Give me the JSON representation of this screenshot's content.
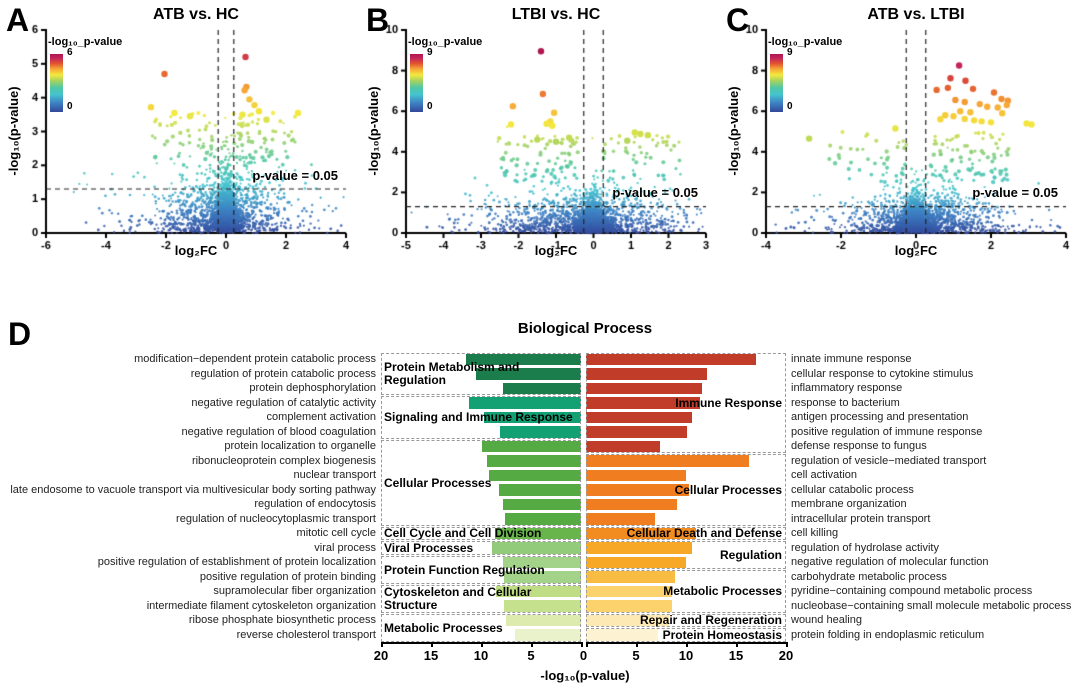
{
  "figure": {
    "panels": [
      {
        "letter": "A"
      },
      {
        "letter": "B"
      },
      {
        "letter": "C"
      },
      {
        "letter": "D"
      }
    ]
  },
  "chart_data": [
    {
      "type": "scatter",
      "subtype": "volcano",
      "title": "ATB vs. HC",
      "xlabel": "log₂FC",
      "ylabel": "-log₁₀(p-value)",
      "xlim": [
        -6,
        4
      ],
      "ylim": [
        0,
        6
      ],
      "xticks": [
        -6,
        -4,
        -2,
        0,
        2,
        4
      ],
      "yticks": [
        0,
        1,
        2,
        3,
        4,
        5,
        6
      ],
      "colorbar": {
        "label": "-log₁₀_p-value",
        "max_label": "6",
        "min_label": "0",
        "max": 6,
        "min": 0
      },
      "pvalue_label": "p-value = 0.05",
      "thresholds": {
        "pvalue_line": 1.3,
        "fc_lines": [
          -0.26,
          0.26
        ]
      },
      "grid": false,
      "scatter_sim": {
        "seed": 7,
        "n": 2400,
        "skew": -0.3,
        "mid": 1.0,
        "wide": 1.9,
        "upper_n": 110,
        "upper_y": [
          2.0,
          3.55
        ],
        "pos_frac": 0.62
      },
      "notable_points": [
        [
          0.65,
          5.2
        ],
        [
          -2.05,
          4.7
        ],
        [
          0.68,
          4.32
        ],
        [
          0.62,
          4.22
        ],
        [
          0.78,
          3.95
        ],
        [
          0.95,
          3.78
        ],
        [
          -2.5,
          3.72
        ],
        [
          -1.72,
          3.55
        ],
        [
          1.1,
          3.6
        ],
        [
          0.55,
          3.5
        ],
        [
          2.4,
          3.55
        ],
        [
          1.35,
          3.35
        ],
        [
          -1.2,
          3.45
        ]
      ]
    },
    {
      "type": "scatter",
      "subtype": "volcano",
      "title": "LTBI vs. HC",
      "xlabel": "log₂FC",
      "ylabel": "-log₁₀(p-value)",
      "xlim": [
        -5,
        3
      ],
      "ylim": [
        0,
        10
      ],
      "xticks": [
        -5,
        -4,
        -3,
        -2,
        -1,
        0,
        1,
        2,
        3
      ],
      "yticks": [
        0,
        2,
        4,
        6,
        8,
        10
      ],
      "colorbar": {
        "label": "-log₁₀_p-value",
        "max_label": "9",
        "min_label": "0",
        "max": 9,
        "min": 0
      },
      "pvalue_label": "p-value = 0.05",
      "thresholds": {
        "pvalue_line": 1.3,
        "fc_lines": [
          -0.26,
          0.26
        ]
      },
      "grid": false,
      "scatter_sim": {
        "seed": 13,
        "n": 2400,
        "skew": -0.5,
        "mid": 1.1,
        "wide": 1.7,
        "upper_n": 130,
        "upper_y": [
          2.5,
          4.85
        ],
        "pos_frac": 0.45
      },
      "notable_points": [
        [
          -1.4,
          8.95
        ],
        [
          -1.35,
          6.85
        ],
        [
          -2.15,
          6.25
        ],
        [
          -1.05,
          5.92
        ],
        [
          -1.15,
          5.5
        ],
        [
          -1.25,
          5.38
        ],
        [
          -2.2,
          5.35
        ],
        [
          -1.1,
          5.28
        ],
        [
          1.1,
          4.95
        ],
        [
          1.25,
          4.88
        ],
        [
          1.45,
          4.82
        ],
        [
          0.9,
          4.55
        ],
        [
          -0.65,
          4.7
        ],
        [
          -1.5,
          4.6
        ],
        [
          -1.0,
          4.5
        ]
      ]
    },
    {
      "type": "scatter",
      "subtype": "volcano",
      "title": "ATB vs. LTBI",
      "xlabel": "log₂FC",
      "ylabel": "-log₁₀(p-value)",
      "xlim": [
        -4,
        4
      ],
      "ylim": [
        0,
        10
      ],
      "xticks": [
        -4,
        -2,
        0,
        2,
        4
      ],
      "yticks": [
        0,
        2,
        4,
        6,
        8,
        10
      ],
      "colorbar": {
        "label": "-log₁₀_p-value",
        "max_label": "9",
        "min_label": "0",
        "max": 9,
        "min": 0
      },
      "pvalue_label": "p-value = 0.05",
      "thresholds": {
        "pvalue_line": 1.3,
        "fc_lines": [
          -0.26,
          0.26
        ]
      },
      "grid": false,
      "scatter_sim": {
        "seed": 21,
        "n": 2400,
        "skew": 0.35,
        "mid": 0.95,
        "wide": 1.55,
        "upper_n": 120,
        "upper_y": [
          2.5,
          5.0
        ],
        "pos_frac": 0.7
      },
      "notable_points": [
        [
          1.15,
          8.25
        ],
        [
          0.92,
          7.62
        ],
        [
          1.32,
          7.5
        ],
        [
          0.85,
          7.15
        ],
        [
          1.52,
          7.1
        ],
        [
          0.55,
          7.05
        ],
        [
          2.08,
          6.92
        ],
        [
          1.05,
          6.55
        ],
        [
          2.28,
          6.6
        ],
        [
          2.45,
          6.52
        ],
        [
          1.3,
          6.45
        ],
        [
          1.7,
          6.35
        ],
        [
          2.42,
          6.3
        ],
        [
          1.9,
          6.22
        ],
        [
          2.18,
          6.18
        ],
        [
          1.18,
          6.0
        ],
        [
          1.45,
          5.95
        ],
        [
          2.3,
          5.9
        ],
        [
          0.78,
          5.8
        ],
        [
          1.0,
          5.75
        ],
        [
          0.65,
          5.6
        ],
        [
          1.3,
          5.62
        ],
        [
          1.55,
          5.55
        ],
        [
          1.75,
          5.5
        ],
        [
          2.0,
          5.45
        ],
        [
          2.95,
          5.4
        ],
        [
          3.08,
          5.35
        ],
        [
          -0.55,
          5.15
        ],
        [
          -2.85,
          4.65
        ]
      ]
    },
    {
      "type": "bar",
      "orientation": "diverging-horizontal",
      "title": "Biological Process",
      "xlabel": "-log₁₀(p-value)",
      "xmax": 20,
      "axis": {
        "left_ticks": [
          "20",
          "15",
          "10",
          "5"
        ],
        "zero": "0",
        "right_ticks": [
          "5",
          "10",
          "15",
          "20"
        ]
      },
      "left": {
        "rows": [
          {
            "label": "modification−dependent protein catabolic process",
            "value": 11.5,
            "color": "#1a7d4b"
          },
          {
            "label": "regulation of protein catabolic process",
            "value": 10.5,
            "color": "#1a7d4b"
          },
          {
            "label": "protein dephosphorylation",
            "value": 7.8,
            "color": "#1a7d4b"
          },
          {
            "label": "negative regulation of catalytic activity",
            "value": 11.2,
            "color": "#13a173"
          },
          {
            "label": "complement activation",
            "value": 9.7,
            "color": "#13a173"
          },
          {
            "label": "negative regulation of blood coagulation",
            "value": 8.1,
            "color": "#13a173"
          },
          {
            "label": "protein localization to organelle",
            "value": 9.9,
            "color": "#55aa43"
          },
          {
            "label": "ribonucleoprotein complex biogenesis",
            "value": 9.4,
            "color": "#55aa43"
          },
          {
            "label": "nuclear transport",
            "value": 9.2,
            "color": "#55aa43"
          },
          {
            "label": "late endosome to vacuole transport via multivesicular body sorting pathway",
            "value": 8.2,
            "color": "#55aa43"
          },
          {
            "label": "regulation of endocytosis",
            "value": 7.8,
            "color": "#55aa43"
          },
          {
            "label": "regulation of nucleocytoplasmic transport",
            "value": 7.6,
            "color": "#55aa43"
          },
          {
            "label": "mitotic cell cycle",
            "value": 8.6,
            "color": "#68b54b"
          },
          {
            "label": "viral process",
            "value": 8.9,
            "color": "#92cc7a"
          },
          {
            "label": "positive regulation of establishment of protein localization",
            "value": 7.8,
            "color": "#a3d389"
          },
          {
            "label": "positive regulation of protein binding",
            "value": 7.7,
            "color": "#a3d389"
          },
          {
            "label": "supramolecular fiber organization",
            "value": 8.5,
            "color": "#bedd85"
          },
          {
            "label": "intermediate filament cytoskeleton organization",
            "value": 7.7,
            "color": "#c6e18e"
          },
          {
            "label": "ribose phosphate biosynthetic process",
            "value": 7.5,
            "color": "#ddecae"
          },
          {
            "label": "reverse cholesterol transport",
            "value": 6.6,
            "color": "#e9f2cb"
          }
        ],
        "groups": [
          {
            "label": "Protein Metabolism and Regulation",
            "start": 0,
            "span": 3,
            "wrap_width": 170
          },
          {
            "label": "Signaling and Immune Response",
            "start": 3,
            "span": 3
          },
          {
            "label": "Cellular Processes",
            "start": 6,
            "span": 6
          },
          {
            "label": "Cell Cycle and Cell Division",
            "start": 12,
            "span": 1
          },
          {
            "label": "Viral Processes",
            "start": 13,
            "span": 1
          },
          {
            "label": "Protein Function Regulation",
            "start": 14,
            "span": 2
          },
          {
            "label": "Cytoskeleton and Cellular Structure",
            "start": 16,
            "span": 2,
            "wrap_width": 150
          },
          {
            "label": "Metabolic Processes",
            "start": 18,
            "span": 2
          }
        ]
      },
      "right": {
        "rows": [
          {
            "label": "innate immune response",
            "value": 17.0,
            "color": "#c23c2a"
          },
          {
            "label": "cellular response to cytokine stimulus",
            "value": 12.1,
            "color": "#c23c2a"
          },
          {
            "label": "inflammatory response",
            "value": 11.6,
            "color": "#c23c2a"
          },
          {
            "label": "response to bacterium",
            "value": 11.4,
            "color": "#c23c2a"
          },
          {
            "label": "antigen processing and presentation",
            "value": 10.6,
            "color": "#c23c2a"
          },
          {
            "label": "positive regulation of immune response",
            "value": 10.1,
            "color": "#c23c2a"
          },
          {
            "label": "defense response to fungus",
            "value": 7.4,
            "color": "#c23c2a"
          },
          {
            "label": "regulation of vesicle−mediated transport",
            "value": 16.3,
            "color": "#f07d20"
          },
          {
            "label": "cell activation",
            "value": 10.0,
            "color": "#f07d20"
          },
          {
            "label": "cellular catabolic process",
            "value": 10.3,
            "color": "#f07d20"
          },
          {
            "label": "membrane organization",
            "value": 9.1,
            "color": "#f07d20"
          },
          {
            "label": "intracellular protein transport",
            "value": 6.9,
            "color": "#f07d20"
          },
          {
            "label": "cell killing",
            "value": 11.0,
            "color": "#f28c21"
          },
          {
            "label": "regulation of hydrolase activity",
            "value": 10.6,
            "color": "#f6a826"
          },
          {
            "label": "negative regulation of molecular function",
            "value": 10.0,
            "color": "#f6a826"
          },
          {
            "label": "carbohydrate metabolic process",
            "value": 8.9,
            "color": "#f9bc42"
          },
          {
            "label": "pyridine−containing compound metabolic process",
            "value": 8.6,
            "color": "#fbd26b"
          },
          {
            "label": "nucleobase−containing small molecule metabolic process",
            "value": 8.6,
            "color": "#fbd26b"
          },
          {
            "label": "wound healing",
            "value": 8.3,
            "color": "#fce9b4"
          },
          {
            "label": "protein folding in endoplasmic reticulum",
            "value": 7.2,
            "color": "#fdf2d2"
          }
        ],
        "groups": [
          {
            "label": "Immune Response",
            "start": 0,
            "span": 7
          },
          {
            "label": "Cellular Processes",
            "start": 7,
            "span": 5
          },
          {
            "label": "Cellular Death and Defense",
            "start": 12,
            "span": 1
          },
          {
            "label": "Regulation",
            "start": 13,
            "span": 2
          },
          {
            "label": "Metabolic Processes",
            "start": 15,
            "span": 3
          },
          {
            "label": "Repair and Regeneration",
            "start": 18,
            "span": 1
          },
          {
            "label": "Protein Homeostasis",
            "start": 19,
            "span": 1
          }
        ]
      }
    }
  ]
}
